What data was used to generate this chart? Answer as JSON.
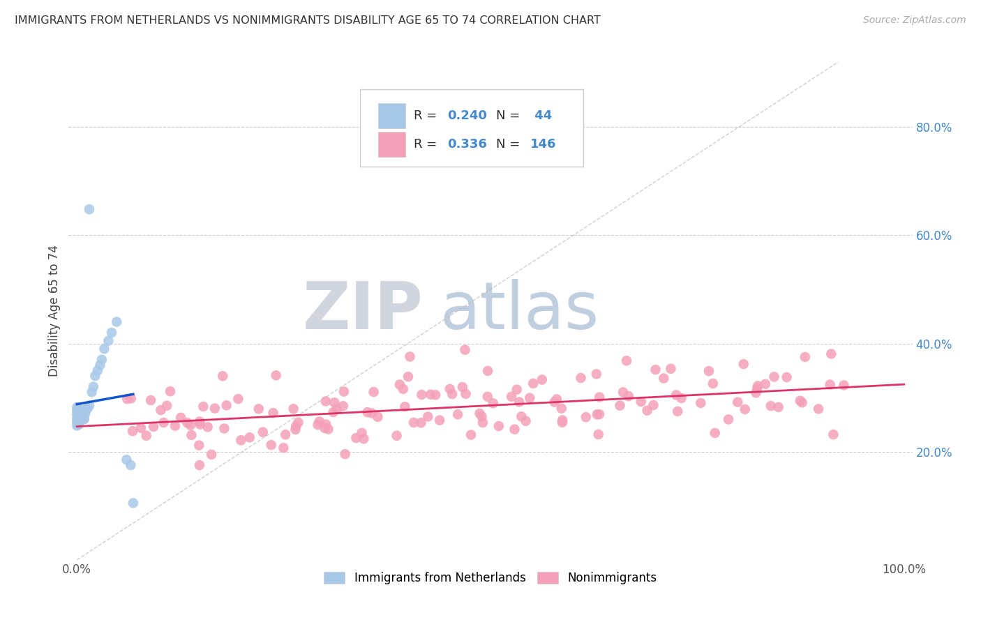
{
  "title": "IMMIGRANTS FROM NETHERLANDS VS NONIMMIGRANTS DISABILITY AGE 65 TO 74 CORRELATION CHART",
  "source": "Source: ZipAtlas.com",
  "ylabel": "Disability Age 65 to 74",
  "xlim": [
    -0.01,
    1.01
  ],
  "ylim": [
    0.0,
    0.92
  ],
  "ytick_vals": [
    0.2,
    0.4,
    0.6,
    0.8
  ],
  "ytick_labels": [
    "20.0%",
    "40.0%",
    "60.0%",
    "80.0%"
  ],
  "xtick_vals": [
    0.0,
    1.0
  ],
  "xtick_labels": [
    "0.0%",
    "100.0%"
  ],
  "color_immigrants": "#a8c8e8",
  "color_nonimmigrants": "#f4a0b8",
  "color_line_immigrants": "#1155cc",
  "color_line_nonimmigrants": "#dd3366",
  "color_ytick": "#4488cc",
  "color_grid": "#cccccc",
  "watermark_zip_color": "#d8dde8",
  "watermark_atlas_color": "#c8d8e8",
  "legend_text_color": "#333333",
  "legend_val_color": "#4488cc",
  "source_color": "#aaaaaa"
}
